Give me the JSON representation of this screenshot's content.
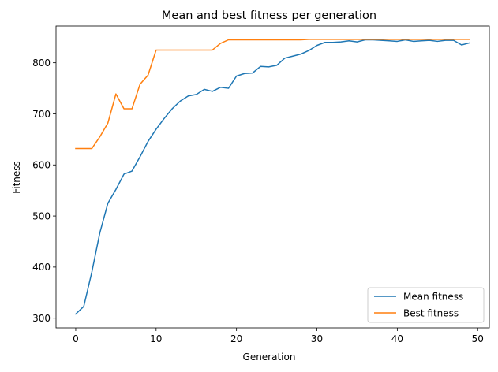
{
  "chart_data": {
    "type": "line",
    "title": "Mean and best fitness per generation",
    "xlabel": "Generation",
    "ylabel": "Fitness",
    "xlim": [
      -2.45,
      51.45
    ],
    "ylim": [
      281,
      872
    ],
    "xticks": [
      0,
      10,
      20,
      30,
      40,
      50
    ],
    "yticks": [
      300,
      400,
      500,
      600,
      700,
      800
    ],
    "grid": false,
    "legend": "lower-right",
    "x": [
      0,
      1,
      2,
      3,
      4,
      5,
      6,
      7,
      8,
      9,
      10,
      11,
      12,
      13,
      14,
      15,
      16,
      17,
      18,
      19,
      20,
      21,
      22,
      23,
      24,
      25,
      26,
      27,
      28,
      29,
      30,
      31,
      32,
      33,
      34,
      35,
      36,
      37,
      38,
      39,
      40,
      41,
      42,
      43,
      44,
      45,
      46,
      47,
      48,
      49
    ],
    "series": [
      {
        "name": "Mean fitness",
        "color": "#1f77b4",
        "values": [
          308,
          323,
          390,
          467,
          525,
          552,
          582,
          588,
          616,
          646,
          670,
          691,
          710,
          725,
          735,
          738,
          748,
          744,
          752,
          750,
          774,
          779,
          780,
          793,
          792,
          795,
          809,
          813,
          817,
          824,
          834,
          840,
          840,
          841,
          843,
          841,
          845,
          845,
          844,
          843,
          842,
          845,
          842,
          843,
          844,
          842,
          844,
          844,
          835,
          839
        ]
      },
      {
        "name": "Best fitness",
        "color": "#ff7f0e",
        "values": [
          632,
          632,
          632,
          655,
          682,
          739,
          710,
          710,
          758,
          776,
          825,
          825,
          825,
          825,
          825,
          825,
          825,
          825,
          838,
          845,
          845,
          845,
          845,
          845,
          845,
          845,
          845,
          845,
          845,
          846,
          846,
          846,
          846,
          846,
          846,
          846,
          846,
          846,
          846,
          846,
          846,
          846,
          846,
          846,
          846,
          846,
          846,
          846,
          846,
          846
        ]
      }
    ]
  }
}
